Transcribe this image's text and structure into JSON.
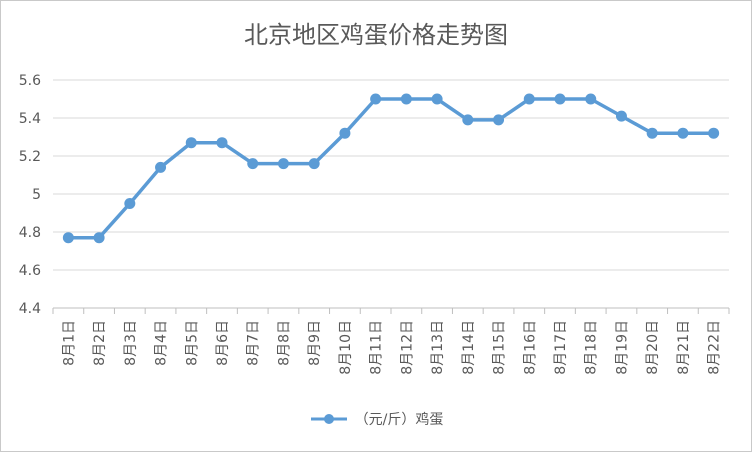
{
  "chart_data": {
    "type": "line",
    "title": "北京地区鸡蛋价格走势图",
    "categories": [
      "8月1日",
      "8月2日",
      "8月3日",
      "8月4日",
      "8月5日",
      "8月6日",
      "8月7日",
      "8月8日",
      "8月9日",
      "8月10日",
      "8月11日",
      "8月12日",
      "8月13日",
      "8月14日",
      "8月15日",
      "8月16日",
      "8月17日",
      "8月18日",
      "8月19日",
      "8月20日",
      "8月21日",
      "8月22日"
    ],
    "series": [
      {
        "name": "（元/斤）鸡蛋",
        "color": "#5b9bd5",
        "values": [
          4.77,
          4.77,
          4.95,
          5.14,
          5.27,
          5.27,
          5.16,
          5.16,
          5.16,
          5.32,
          5.5,
          5.5,
          5.5,
          5.39,
          5.39,
          5.5,
          5.5,
          5.5,
          5.41,
          5.32,
          5.32,
          5.32
        ]
      }
    ],
    "ylim": [
      4.4,
      5.6
    ],
    "yticks": [
      "4.4",
      "4.6",
      "4.8",
      "5",
      "5.2",
      "5.4",
      "5.6"
    ],
    "grid": true,
    "legend_position": "bottom"
  }
}
